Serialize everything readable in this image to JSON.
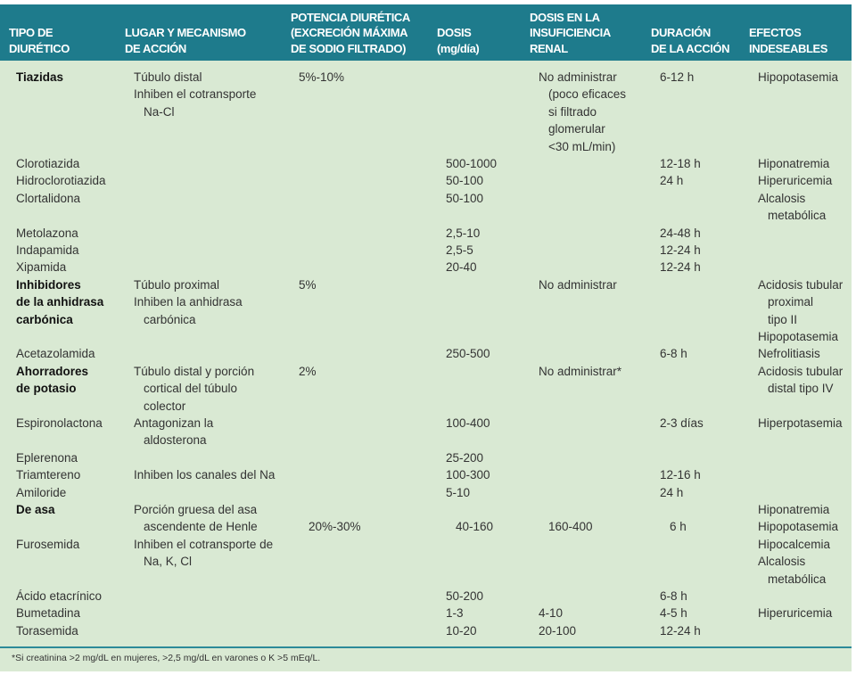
{
  "header": [
    "TIPO DE\nDIURÉTICO",
    "LUGAR Y MECANISMO\nDE ACCIÓN",
    "POTENCIA DIURÉTICA\n(EXCRECIÓN MÁXIMA\nDE SODIO FILTRADO)",
    "DOSIS\n(mg/día)",
    "DOSIS EN LA\nINSUFICIENCIA\nRENAL",
    "DURACIÓN\nDE LA ACCIÓN",
    "EFECTOS\nINDESEABLES"
  ],
  "colors": {
    "header_bg": "#1e7b8c",
    "body_bg": "#d9e9d3"
  },
  "rows": [
    {
      "bold": true,
      "lines": 5,
      "cells": [
        [
          "Tiazidas"
        ],
        [
          "Túbulo distal",
          "Inhiben el cotransporte\nNa-Cl"
        ],
        [
          "5%-10%"
        ],
        [],
        [
          "No administrar\n(poco eficaces\nsi filtrado\nglomerular\n<30 mL/min)"
        ],
        [
          "6-12 h"
        ],
        [
          "Hipopotasemia"
        ]
      ]
    },
    {
      "lines": 1,
      "cells": [
        [
          "Clorotiazida"
        ],
        [],
        [],
        [
          "500-1000"
        ],
        [],
        [
          "12-18 h"
        ],
        [
          "Hiponatremia"
        ]
      ]
    },
    {
      "lines": 1,
      "cells": [
        [
          "Hidroclorotiazida"
        ],
        [],
        [],
        [
          "50-100"
        ],
        [],
        [
          "24 h"
        ],
        [
          "Hiperuricemia"
        ]
      ]
    },
    {
      "lines": 2,
      "cells": [
        [
          "Clortalidona"
        ],
        [],
        [],
        [
          "50-100"
        ],
        [],
        [],
        [
          "Alcalosis\nmetabólica"
        ]
      ]
    },
    {
      "lines": 1,
      "cells": [
        [
          "Metolazona"
        ],
        [],
        [],
        [
          "2,5-10"
        ],
        [],
        [
          "24-48 h"
        ],
        []
      ]
    },
    {
      "lines": 1,
      "cells": [
        [
          "Indapamida"
        ],
        [],
        [],
        [
          "2,5-5"
        ],
        [],
        [
          "12-24 h"
        ],
        []
      ]
    },
    {
      "lines": 1,
      "cells": [
        [
          "Xipamida"
        ],
        [],
        [],
        [
          "20-40"
        ],
        [],
        [
          "12-24 h"
        ],
        []
      ]
    },
    {
      "bold": true,
      "lines": 4,
      "cells": [
        [
          "Inhibidores",
          "de la anhidrasa",
          "carbónica"
        ],
        [
          "Túbulo proximal",
          "Inhiben la anhidrasa\ncarbónica"
        ],
        [
          "5%"
        ],
        [],
        [
          "No administrar"
        ],
        [],
        [
          "Acidosis tubular\nproximal\ntipo II",
          "Hipopotasemia"
        ]
      ]
    },
    {
      "lines": 1,
      "cells": [
        [
          "Acetazolamida"
        ],
        [],
        [],
        [
          "250-500"
        ],
        [],
        [
          "6-8 h"
        ],
        [
          "Nefrolitiasis"
        ]
      ]
    },
    {
      "bold": true,
      "lines": 3,
      "cells": [
        [
          "Ahorradores",
          "de potasio"
        ],
        [
          "Túbulo distal y porción\ncortical del túbulo\ncolector"
        ],
        [
          "2%"
        ],
        [],
        [
          "No administrar*"
        ],
        [],
        [
          "Acidosis tubular\ndistal tipo IV"
        ]
      ]
    },
    {
      "lines": 2,
      "cells": [
        [
          "Espironolactona"
        ],
        [
          "Antagonizan la\naldosterona"
        ],
        [],
        [
          "100-400"
        ],
        [],
        [
          "2-3 días"
        ],
        [
          "Hiperpotasemia"
        ]
      ]
    },
    {
      "lines": 1,
      "cells": [
        [
          "Eplerenona"
        ],
        [],
        [],
        [
          "25-200"
        ],
        [],
        [],
        []
      ]
    },
    {
      "lines": 1,
      "cells": [
        [
          "Triamtereno"
        ],
        [
          "Inhiben los canales del Na"
        ],
        [],
        [
          "100-300"
        ],
        [],
        [
          "12-16 h"
        ],
        []
      ]
    },
    {
      "lines": 1,
      "cells": [
        [
          "Amiloride"
        ],
        [],
        [],
        [
          "5-10"
        ],
        [],
        [
          "24 h"
        ],
        []
      ]
    },
    {
      "bold": true,
      "lines": 2,
      "cells": [
        [
          "De asa"
        ],
        [
          "Porción gruesa del asa\nascendente de Henle"
        ],
        [
          "\n20%-30%"
        ],
        [
          "\n40-160"
        ],
        [
          "\n160-400"
        ],
        [
          "\n6 h"
        ],
        [
          "Hiponatremia",
          "Hipopotasemia"
        ]
      ]
    },
    {
      "lines": 3,
      "cells": [
        [
          "Furosemida"
        ],
        [
          "Inhiben el cotransporte de\nNa, K, Cl"
        ],
        [],
        [],
        [],
        [],
        [
          "Hipocalcemia",
          "Alcalosis\nmetabólica"
        ]
      ]
    },
    {
      "lines": 1,
      "cells": [
        [
          "Ácido etacrínico"
        ],
        [],
        [],
        [
          "50-200"
        ],
        [],
        [
          "6-8 h"
        ],
        []
      ]
    },
    {
      "lines": 1,
      "cells": [
        [
          "Bumetadina"
        ],
        [],
        [],
        [
          "1-3"
        ],
        [
          "4-10"
        ],
        [
          "4-5 h"
        ],
        [
          "Hiperuricemia"
        ]
      ]
    },
    {
      "lines": 1,
      "cells": [
        [
          "Torasemida"
        ],
        [],
        [],
        [
          "10-20"
        ],
        [
          "20-100"
        ],
        [
          "12-24 h"
        ],
        []
      ]
    }
  ],
  "footnote": "*Si creatinina >2 mg/dL en mujeres, >2,5 mg/dL en varones o K >5 mEq/L."
}
